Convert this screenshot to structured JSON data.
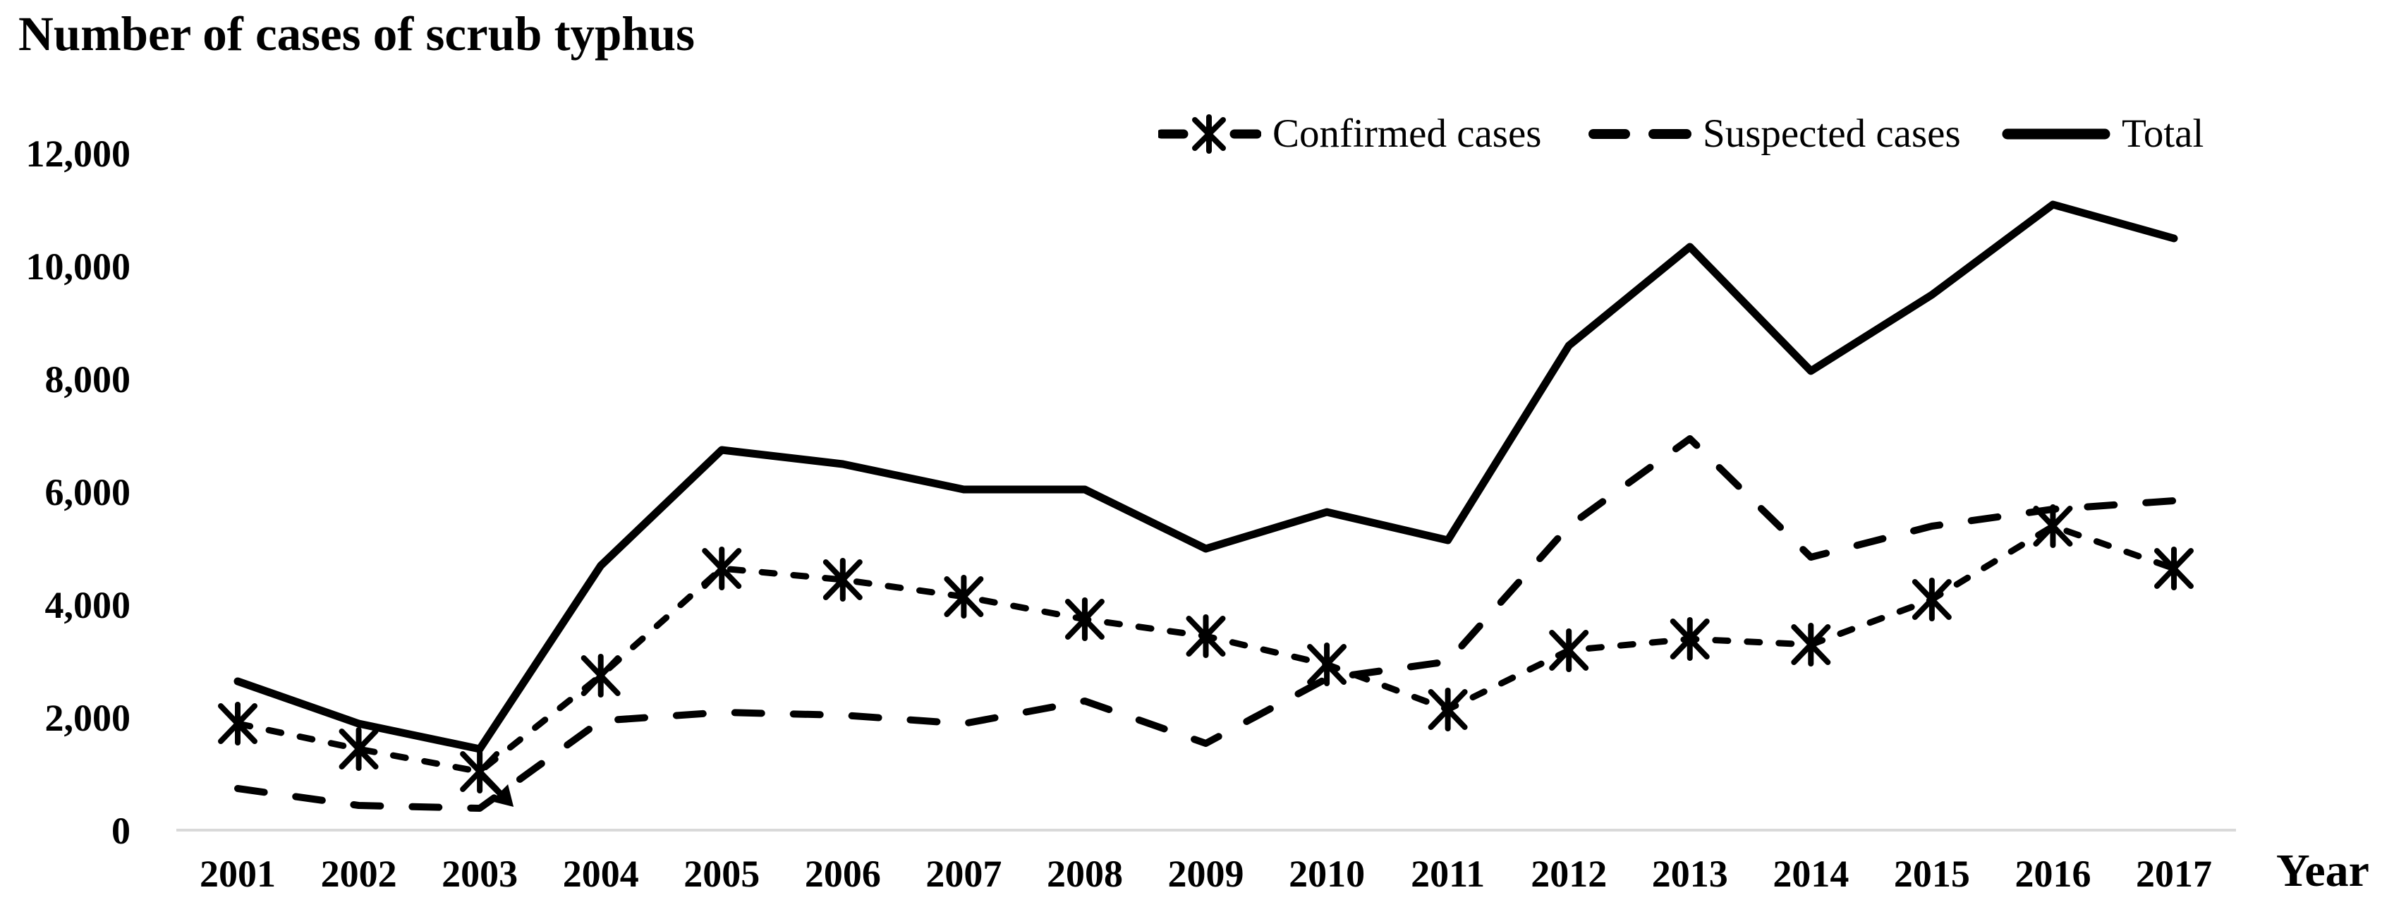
{
  "title": "Number of cases of scrub typhus",
  "x_axis_title": "Year",
  "legend": {
    "items": [
      {
        "label": "Confirmed cases"
      },
      {
        "label": "Suspected cases"
      },
      {
        "label": "Total"
      }
    ]
  },
  "colors": {
    "series": "#000000",
    "axis_line": "#d9d9d9",
    "background": "#ffffff",
    "text": "#000000"
  },
  "chart_data": {
    "type": "line",
    "title": "Number of cases of scrub typhus",
    "xlabel": "Year",
    "ylabel": "",
    "x_labels": [
      "2001",
      "2002",
      "2003",
      "2004",
      "2005",
      "2006",
      "2007",
      "2008",
      "2009",
      "2010",
      "2011",
      "2012",
      "2013",
      "2014",
      "2015",
      "2016",
      "2017"
    ],
    "yticks": [
      0,
      2000,
      4000,
      6000,
      8000,
      10000,
      12000
    ],
    "ytick_labels": [
      "0",
      "2,000",
      "4,000",
      "6,000",
      "8,000",
      "10,000",
      "12,000"
    ],
    "ylim": [
      0,
      12000
    ],
    "grid": false,
    "legend_position": "top-right",
    "series": [
      {
        "name": "Confirmed cases",
        "style": "dashed-asterisk",
        "values": [
          1900,
          1450,
          1050,
          2750,
          4650,
          4450,
          4150,
          3750,
          3450,
          2950,
          2150,
          3200,
          3400,
          3300,
          4100,
          5400,
          4650
        ]
      },
      {
        "name": "Suspected cases",
        "style": "dashed",
        "values": [
          750,
          450,
          400,
          1950,
          2100,
          2050,
          1900,
          2300,
          1550,
          2700,
          3000,
          5400,
          6950,
          4850,
          5400,
          5700,
          5850
        ]
      },
      {
        "name": "Total",
        "style": "solid",
        "values": [
          2650,
          1900,
          1450,
          4700,
          6750,
          6500,
          6050,
          6050,
          5000,
          5650,
          5150,
          8600,
          10350,
          8150,
          9500,
          11100,
          10500
        ]
      }
    ],
    "annotation": {
      "type": "arrow",
      "at_year": "2003",
      "series": "Confirmed cases",
      "direction": "down-right"
    }
  }
}
